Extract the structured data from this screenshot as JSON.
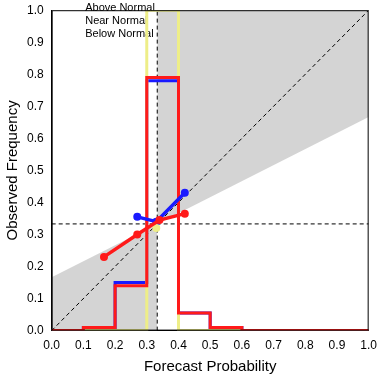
{
  "chart_data": {
    "type": "line",
    "xlabel": "Forecast Probability",
    "ylabel": "Observed Frequency",
    "xlim": [
      0,
      1
    ],
    "ylim": [
      0,
      1
    ],
    "xticks": [
      {
        "value": 0,
        "label": "0.0"
      },
      0.1,
      0.2,
      0.3,
      0.4,
      0.5,
      0.6,
      0.7,
      0.8,
      0.9,
      {
        "value": 1,
        "label": "1.0"
      }
    ],
    "yticks": [
      {
        "value": 0,
        "label": "0.0"
      },
      0.1,
      0.2,
      0.3,
      0.4,
      0.5,
      0.6,
      0.7,
      0.8,
      0.9,
      {
        "value": 1,
        "label": "1.0"
      }
    ],
    "grid": false,
    "legend": "upper left",
    "climatology": 0.333,
    "bins": [
      0,
      0.1,
      0.2,
      0.3,
      0.4,
      0.5,
      0.6,
      0.7,
      0.8,
      0.9,
      1.0
    ],
    "series": [
      {
        "name": "Below Normal",
        "color": "#1a1aff",
        "marker": "circle",
        "x": [
          0.27,
          0.33,
          0.42
        ],
        "values": [
          0.355,
          0.34,
          0.43
        ],
        "frequency": [
          0,
          0.01,
          0.15,
          0.78,
          0.055,
          0.01,
          0,
          0,
          0,
          0
        ]
      },
      {
        "name": "Near Normal",
        "color": "#eeee88",
        "marker": "circle",
        "x": [
          0.33
        ],
        "values": [
          0.32
        ],
        "frequency": [
          0,
          0,
          0,
          1.0,
          0,
          0,
          0,
          0,
          0,
          0
        ]
      },
      {
        "name": "Above Normal",
        "color": "#ff1a1a",
        "marker": "circle",
        "x": [
          0.165,
          0.27,
          0.34,
          0.42
        ],
        "values": [
          0.23,
          0.3,
          0.345,
          0.365
        ],
        "frequency": [
          0,
          0.01,
          0.14,
          0.79,
          0.055,
          0.01,
          0,
          0,
          0,
          0
        ]
      }
    ]
  }
}
